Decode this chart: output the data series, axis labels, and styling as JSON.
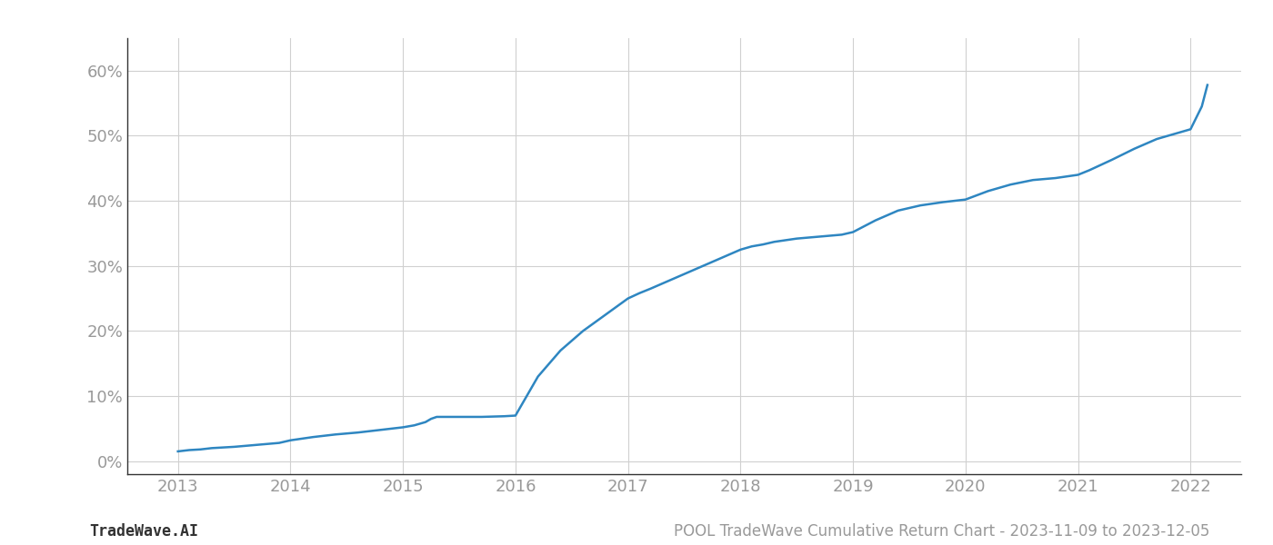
{
  "title": "POOL TradeWave Cumulative Return Chart - 2023-11-09 to 2023-12-05",
  "footer_left": "TradeWave.AI",
  "line_color": "#2e86c1",
  "line_width": 1.8,
  "background_color": "#ffffff",
  "grid_color": "#d0d0d0",
  "x_years": [
    2013.0,
    2013.1,
    2013.2,
    2013.3,
    2013.5,
    2013.7,
    2013.9,
    2014.0,
    2014.2,
    2014.4,
    2014.6,
    2014.8,
    2015.0,
    2015.1,
    2015.2,
    2015.25,
    2015.3,
    2015.5,
    2015.7,
    2015.9,
    2016.0,
    2016.1,
    2016.2,
    2016.4,
    2016.6,
    2016.8,
    2017.0,
    2017.1,
    2017.2,
    2017.4,
    2017.6,
    2017.8,
    2018.0,
    2018.1,
    2018.2,
    2018.3,
    2018.5,
    2018.7,
    2018.9,
    2019.0,
    2019.2,
    2019.4,
    2019.6,
    2019.8,
    2020.0,
    2020.2,
    2020.4,
    2020.6,
    2020.8,
    2021.0,
    2021.1,
    2021.2,
    2021.3,
    2021.5,
    2021.7,
    2021.9,
    2022.0,
    2022.1,
    2022.15
  ],
  "y_values": [
    0.015,
    0.017,
    0.018,
    0.02,
    0.022,
    0.025,
    0.028,
    0.032,
    0.037,
    0.041,
    0.044,
    0.048,
    0.052,
    0.055,
    0.06,
    0.065,
    0.068,
    0.068,
    0.068,
    0.069,
    0.07,
    0.1,
    0.13,
    0.17,
    0.2,
    0.225,
    0.25,
    0.258,
    0.265,
    0.28,
    0.295,
    0.31,
    0.325,
    0.33,
    0.333,
    0.337,
    0.342,
    0.345,
    0.348,
    0.352,
    0.37,
    0.385,
    0.393,
    0.398,
    0.402,
    0.415,
    0.425,
    0.432,
    0.435,
    0.44,
    0.447,
    0.455,
    0.463,
    0.48,
    0.495,
    0.505,
    0.51,
    0.545,
    0.578
  ],
  "xlim": [
    2012.55,
    2022.45
  ],
  "ylim": [
    -0.02,
    0.65
  ],
  "yticks": [
    0.0,
    0.1,
    0.2,
    0.3,
    0.4,
    0.5,
    0.6
  ],
  "xticks": [
    2013,
    2014,
    2015,
    2016,
    2017,
    2018,
    2019,
    2020,
    2021,
    2022
  ],
  "tick_label_color": "#999999",
  "axis_color": "#333333",
  "spine_color": "#333333",
  "tick_fontsize": 13,
  "footer_fontsize": 12
}
